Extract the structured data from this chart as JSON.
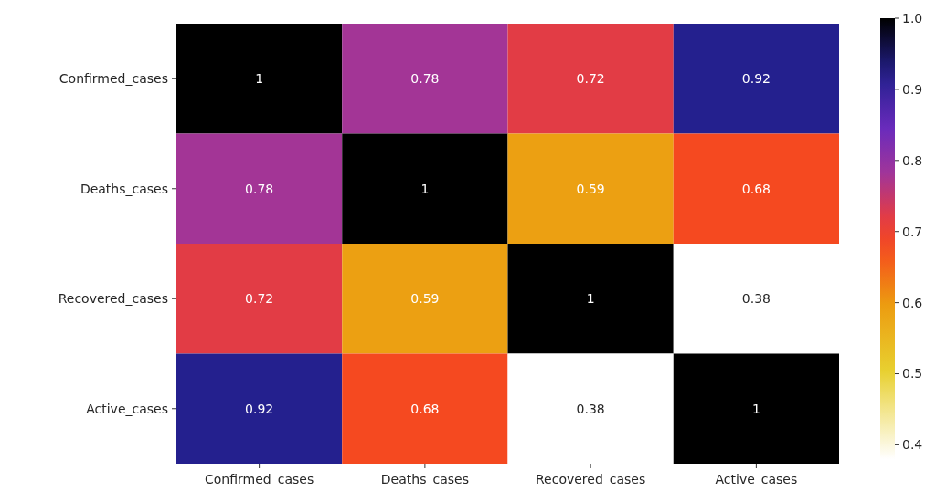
{
  "chart_data": {
    "type": "heatmap",
    "categories": [
      "Confirmed_cases",
      "Deaths_cases",
      "Recovered_cases",
      "Active_cases"
    ],
    "y_categories": [
      "Confirmed_cases",
      "Deaths_cases",
      "Recovered_cases",
      "Active_cases"
    ],
    "cells": [
      [
        1,
        0.78,
        0.72,
        0.92
      ],
      [
        0.78,
        1,
        0.59,
        0.68
      ],
      [
        0.72,
        0.59,
        1,
        0.38
      ],
      [
        0.92,
        0.68,
        0.38,
        1
      ]
    ],
    "clim": [
      0.38,
      1.0
    ],
    "cticks": [
      {
        "value": 0.4,
        "label": "0.4"
      },
      {
        "value": 0.5,
        "label": "0.5"
      },
      {
        "value": 0.6,
        "label": "0.6"
      },
      {
        "value": 0.7,
        "label": "0.7"
      },
      {
        "value": 0.8,
        "label": "0.8"
      },
      {
        "value": 0.9,
        "label": "0.9"
      },
      {
        "value": 1.0,
        "label": "1.0"
      }
    ],
    "data_labels": true
  }
}
